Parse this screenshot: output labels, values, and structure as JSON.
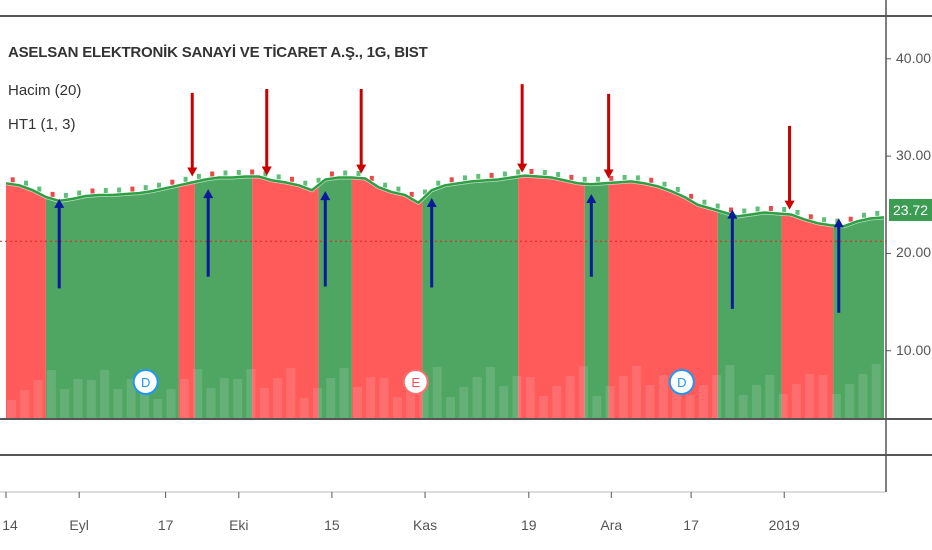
{
  "header": {
    "title": "ASELSAN ELEKTRONİK SANAYİ VE TİCARET A.Ş., 1G, BIST",
    "volume_indicator": "Hacim (20)",
    "ht_indicator": "HT1 (1, 3)"
  },
  "last_price_label": "23.72",
  "colors": {
    "up": "#3c9c52",
    "down": "#ff4d4d",
    "line": "#2ea043",
    "buy_arrow": "#0a1a9a",
    "sell_arrow": "#cc0000",
    "marker_border": "#2196f3"
  },
  "event_markers": [
    "D",
    "E",
    "D"
  ],
  "chart_data": {
    "type": "line",
    "y_ticks": [
      "10.00",
      "20.00",
      "30.00",
      "40.00"
    ],
    "x_ticks": [
      "14",
      "Eyl",
      "17",
      "Eki",
      "15",
      "Kas",
      "19",
      "Ara",
      "17",
      "2019"
    ],
    "ylim": [
      0,
      45
    ],
    "last_price": 23.72,
    "ht_line": [
      [
        0,
        27.2
      ],
      [
        1,
        27.0
      ],
      [
        2,
        26.5
      ],
      [
        3,
        25.8
      ],
      [
        4,
        25.4
      ],
      [
        5,
        25.6
      ],
      [
        6,
        25.9
      ],
      [
        7,
        26.0
      ],
      [
        8,
        26.0
      ],
      [
        9,
        26.1
      ],
      [
        10,
        26.2
      ],
      [
        11,
        26.4
      ],
      [
        12,
        26.7
      ],
      [
        13,
        27.0
      ],
      [
        14,
        27.3
      ],
      [
        15,
        27.6
      ],
      [
        16,
        27.8
      ],
      [
        17,
        27.8
      ],
      [
        18,
        27.9
      ],
      [
        19,
        27.9
      ],
      [
        20,
        27.5
      ],
      [
        21,
        27.3
      ],
      [
        22,
        27.0
      ],
      [
        23,
        26.5
      ],
      [
        24,
        27.6
      ],
      [
        25,
        27.8
      ],
      [
        26,
        27.8
      ],
      [
        27,
        27.7
      ],
      [
        28,
        26.8
      ],
      [
        29,
        26.3
      ],
      [
        30,
        26.0
      ],
      [
        31,
        25.2
      ],
      [
        32,
        26.5
      ],
      [
        33,
        27.0
      ],
      [
        34,
        27.2
      ],
      [
        35,
        27.4
      ],
      [
        36,
        27.5
      ],
      [
        37,
        27.6
      ],
      [
        38,
        27.8
      ],
      [
        39,
        28.0
      ],
      [
        40,
        27.9
      ],
      [
        41,
        27.8
      ],
      [
        42,
        27.5
      ],
      [
        43,
        27.2
      ],
      [
        44,
        27.1
      ],
      [
        45,
        27.2
      ],
      [
        46,
        27.3
      ],
      [
        47,
        27.4
      ],
      [
        48,
        27.2
      ],
      [
        49,
        26.9
      ],
      [
        50,
        26.4
      ],
      [
        51,
        25.8
      ],
      [
        52,
        25.0
      ],
      [
        53,
        24.6
      ],
      [
        54,
        24.2
      ],
      [
        55,
        23.8
      ],
      [
        56,
        24.0
      ],
      [
        57,
        24.2
      ],
      [
        58,
        24.1
      ],
      [
        59,
        24.0
      ],
      [
        60,
        23.5
      ],
      [
        61,
        23.1
      ],
      [
        62,
        22.9
      ],
      [
        63,
        22.8
      ],
      [
        64,
        23.3
      ],
      [
        65,
        23.6
      ],
      [
        66,
        23.7
      ]
    ],
    "regimes": [
      {
        "start": 0,
        "end": 3,
        "trend": "down"
      },
      {
        "start": 3,
        "end": 13,
        "trend": "up"
      },
      {
        "start": 13,
        "end": 14.2,
        "trend": "down"
      },
      {
        "start": 14.2,
        "end": 18.5,
        "trend": "up"
      },
      {
        "start": 18.5,
        "end": 23.5,
        "trend": "down"
      },
      {
        "start": 23.5,
        "end": 26,
        "trend": "up"
      },
      {
        "start": 26,
        "end": 31.3,
        "trend": "down"
      },
      {
        "start": 31.3,
        "end": 38.5,
        "trend": "up"
      },
      {
        "start": 38.5,
        "end": 43.5,
        "trend": "down"
      },
      {
        "start": 43.5,
        "end": 45.3,
        "trend": "up"
      },
      {
        "start": 45.3,
        "end": 53.5,
        "trend": "down"
      },
      {
        "start": 53.5,
        "end": 58.3,
        "trend": "up"
      },
      {
        "start": 58.3,
        "end": 62.2,
        "trend": "down"
      },
      {
        "start": 62.2,
        "end": 66,
        "trend": "up"
      }
    ],
    "sell_signals": [
      {
        "x": 14,
        "top": 36.5,
        "tip": 27.9
      },
      {
        "x": 19.6,
        "top": 36.9,
        "tip": 28.0
      },
      {
        "x": 26.7,
        "top": 36.9,
        "tip": 28.2
      },
      {
        "x": 38.8,
        "top": 37.4,
        "tip": 28.3
      },
      {
        "x": 45.3,
        "top": 36.4,
        "tip": 27.7
      },
      {
        "x": 58.9,
        "top": 33.1,
        "tip": 24.5
      }
    ],
    "buy_signals": [
      {
        "x": 4,
        "tip": 25.6,
        "bottom": 16.4
      },
      {
        "x": 15.2,
        "tip": 26.6,
        "bottom": 17.6
      },
      {
        "x": 24,
        "tip": 26.4,
        "bottom": 16.6
      },
      {
        "x": 32,
        "tip": 25.7,
        "bottom": 16.5
      },
      {
        "x": 44,
        "tip": 26.1,
        "bottom": 17.6
      },
      {
        "x": 54.6,
        "tip": 24.5,
        "bottom": 14.3
      },
      {
        "x": 62.6,
        "tip": 23.6,
        "bottom": 13.9
      }
    ],
    "event_marker_x": [
      10.5,
      30.8,
      50.8
    ],
    "x_tick_positions": [
      0,
      5.5,
      12,
      17.5,
      24.5,
      31.5,
      39.3,
      45.5,
      51.5,
      58.5
    ]
  }
}
